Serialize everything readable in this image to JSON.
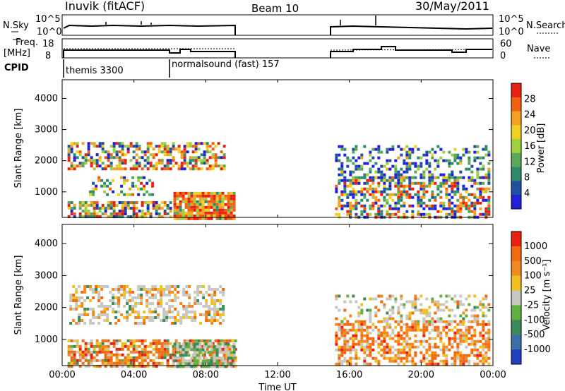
{
  "header": {
    "station": "Inuvik (fitACF)",
    "beam": "Beam 10",
    "date": "30/May/2011"
  },
  "left_labels": {
    "nsky": "N.Sky",
    "freq": "Freq.",
    "freq_unit": "[MHz]",
    "cpid": "CPID"
  },
  "right_labels": {
    "nsearch": "N.Search",
    "nave": "Nave"
  },
  "nsky_ticks": [
    "10^5",
    "10^0"
  ],
  "freq_ticks": [
    "18",
    "8"
  ],
  "nave_ticks": [
    "60",
    "0"
  ],
  "cpid": {
    "seg1": "themis 3300",
    "seg2": "normalsound (fast) 157"
  },
  "chart_data": [
    {
      "type": "heatmap",
      "name": "power",
      "ylabel": "Slant Range [km]",
      "yticks": [
        "4000",
        "3000",
        "2000",
        "1000"
      ],
      "colorbar_label": "Power [dB]",
      "colorbar_ticks": [
        "28",
        "24",
        "20",
        "16",
        "12",
        "8",
        "4"
      ],
      "colors": [
        "#2020d8",
        "#204fa0",
        "#2f8a6c",
        "#5aa95a",
        "#9fcf40",
        "#f0d020",
        "#f5a020",
        "#f06010",
        "#e82010"
      ]
    },
    {
      "type": "heatmap",
      "name": "velocity",
      "ylabel": "Slant Range [km]",
      "yticks": [
        "4000",
        "3000",
        "2000",
        "1000"
      ],
      "colorbar_label": "Velocity [m s⁻¹]",
      "colorbar_ticks": [
        "1000",
        "500",
        "100",
        "25",
        "-25",
        "-100",
        "-500",
        "-1000"
      ],
      "colors": [
        "#2040c0",
        "#3b6fa8",
        "#3a8a5a",
        "#60b040",
        "#c8c8c0",
        "#f0c020",
        "#f08a20",
        "#f06a10",
        "#e82010"
      ]
    }
  ],
  "xaxis": {
    "label": "Time UT",
    "ticks": [
      "00:00",
      "04:00",
      "08:00",
      "12:00",
      "16:00",
      "20:00",
      "00:00"
    ]
  }
}
